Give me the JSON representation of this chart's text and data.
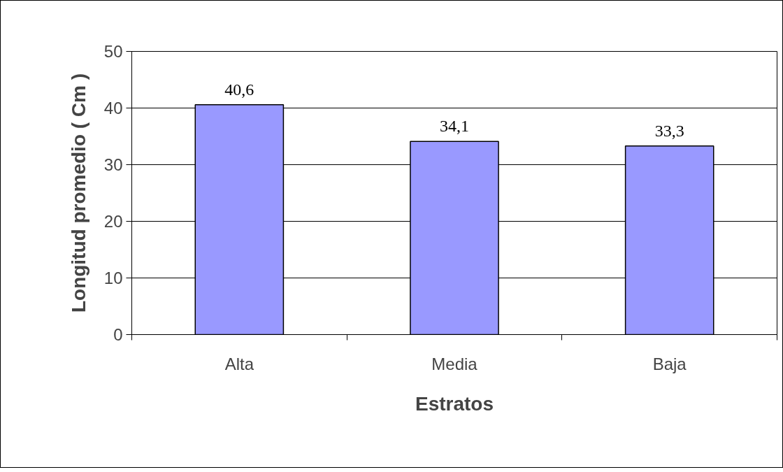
{
  "chart_data": {
    "type": "bar",
    "xlabel": "Estratos",
    "ylabel": "Longitud promedio ( Cm )",
    "categories": [
      "Alta",
      "Media",
      "Baja"
    ],
    "values": [
      40.6,
      34.1,
      33.3
    ],
    "value_labels": [
      "40,6",
      "34,1",
      "33,3"
    ],
    "color": "#9999ff",
    "ylim": [
      0,
      50
    ],
    "yticks": [
      0,
      10,
      20,
      30,
      40,
      50
    ],
    "grid": "y"
  }
}
